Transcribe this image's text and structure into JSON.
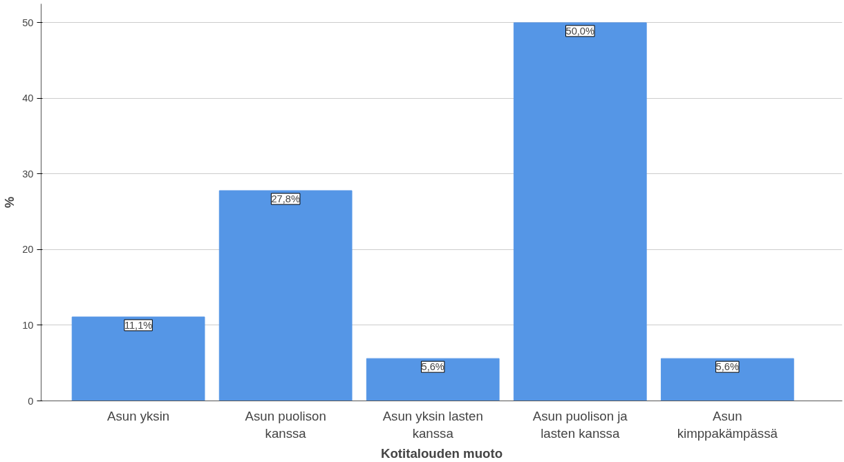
{
  "chart_data": {
    "type": "bar",
    "xlabel": "Kotitalouden muoto",
    "ylabel": "%",
    "categories": [
      "Asun yksin",
      "Asun puolison kanssa",
      "Asun yksin lasten kanssa",
      "Asun puolison ja lasten kanssa",
      "Asun kimppakämpässä"
    ],
    "values": [
      11.1,
      27.8,
      5.6,
      50.0,
      5.6
    ],
    "value_labels": [
      "11,1%",
      "27,8%",
      "5,6%",
      "50,0%",
      "5,6%"
    ],
    "color": "#5596e6",
    "ylim": [
      0,
      52.5
    ],
    "yticks": [
      0,
      10,
      20,
      30,
      40,
      50
    ],
    "grid": "y"
  }
}
